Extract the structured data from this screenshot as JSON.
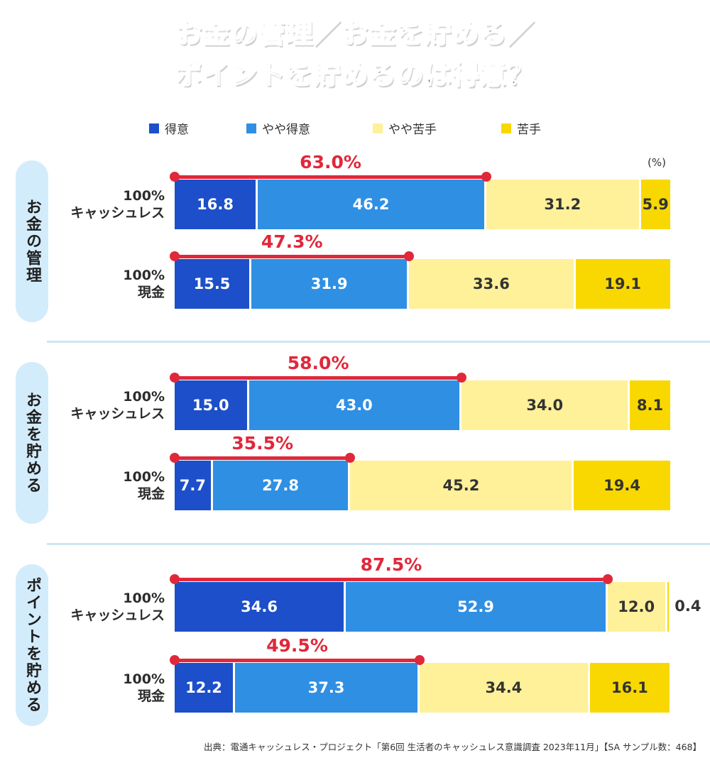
{
  "title": {
    "line1": "お金の管理／お金を貯める／",
    "line2": "ポイントを貯めるのは得意？"
  },
  "colors": {
    "tokui": "#1c4fc9",
    "yaya_tokui": "#2f8fe3",
    "yaya_nigate": "#fff09a",
    "nigate": "#f8d800",
    "bracket": "#e0283b",
    "pill": "#d3ecfb"
  },
  "legend": [
    "得意",
    "やや得意",
    "やや苦手",
    "苦手"
  ],
  "unit": "(%)",
  "source": "出典：電通キャッシュレス・プロジェクト「第6回 生活者のキャッシュレス意識調査 2023年11月」【SA サンプル数：468】",
  "chart_data": {
    "type": "bar",
    "orientation": "horizontal-stacked",
    "unit": "%",
    "xlim": [
      0,
      100
    ],
    "series_names": [
      "得意",
      "やや得意",
      "やや苦手",
      "苦手"
    ],
    "groups": [
      {
        "name": "お金の管理",
        "rows": [
          {
            "label_line1": "100%",
            "label_line2": "キャッシュレス",
            "values": [
              16.8,
              46.2,
              31.2,
              5.9
            ],
            "total": "63.0%"
          },
          {
            "label_line1": "100%",
            "label_line2": "現金",
            "values": [
              15.5,
              31.9,
              33.6,
              19.1
            ],
            "total": "47.3%"
          }
        ]
      },
      {
        "name": "お金を貯める",
        "rows": [
          {
            "label_line1": "100%",
            "label_line2": "キャッシュレス",
            "values": [
              15.0,
              43.0,
              34.0,
              8.1
            ],
            "total": "58.0%"
          },
          {
            "label_line1": "100%",
            "label_line2": "現金",
            "values": [
              7.7,
              27.8,
              45.2,
              19.4
            ],
            "total": "35.5%"
          }
        ]
      },
      {
        "name": "ポイントを貯める",
        "rows": [
          {
            "label_line1": "100%",
            "label_line2": "キャッシュレス",
            "values": [
              34.6,
              52.9,
              12.0,
              0.4
            ],
            "total": "87.5%"
          },
          {
            "label_line1": "100%",
            "label_line2": "現金",
            "values": [
              12.2,
              37.3,
              34.4,
              16.1
            ],
            "total": "49.5%"
          }
        ]
      }
    ]
  }
}
